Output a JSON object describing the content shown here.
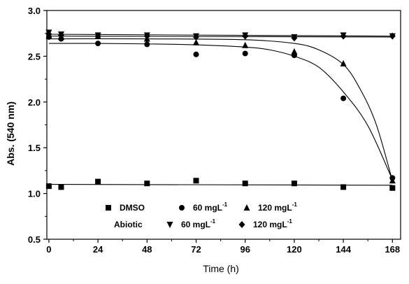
{
  "chart_data": {
    "type": "scatter",
    "xlabel": "Time (h)",
    "ylabel": "Abs. (540 nm)",
    "xlim": [
      -1,
      172
    ],
    "ylim": [
      0.5,
      3.0
    ],
    "x_ticks": [
      0,
      24,
      48,
      72,
      96,
      120,
      144,
      168
    ],
    "y_ticks": [
      0.5,
      1.0,
      1.5,
      2.0,
      2.5,
      3.0
    ],
    "y_tick_labels": [
      "0.5",
      "1.0",
      "1.5",
      "2.0",
      "2.5",
      "3.0"
    ],
    "grid": false,
    "legend": {
      "placement": "bottom-center",
      "row1_prefix": "",
      "row2_prefix": "Abiotic",
      "unit_superscript": "-1"
    },
    "series": [
      {
        "name": "DMSO",
        "legend_text": "DMSO",
        "marker": "square",
        "x": [
          0,
          6,
          24,
          48,
          72,
          96,
          120,
          144,
          168
        ],
        "y": [
          1.08,
          1.07,
          1.13,
          1.11,
          1.14,
          1.11,
          1.11,
          1.07,
          1.06
        ],
        "fit": [
          [
            0,
            1.1
          ],
          [
            168,
            1.09
          ]
        ]
      },
      {
        "name": "60 mgL-1",
        "legend_text": "60 mgL",
        "marker": "circle",
        "x": [
          0,
          6,
          24,
          48,
          72,
          96,
          120,
          144,
          168
        ],
        "y": [
          2.71,
          2.69,
          2.64,
          2.63,
          2.52,
          2.53,
          2.51,
          2.04,
          1.17
        ],
        "fit": [
          [
            0,
            2.64
          ],
          [
            24,
            2.64
          ],
          [
            48,
            2.635
          ],
          [
            72,
            2.625
          ],
          [
            96,
            2.6
          ],
          [
            108,
            2.57
          ],
          [
            120,
            2.5
          ],
          [
            132,
            2.38
          ],
          [
            144,
            2.11
          ],
          [
            156,
            1.74
          ],
          [
            168,
            1.15
          ]
        ]
      },
      {
        "name": "120 mgL-1",
        "legend_text": "120 mgL",
        "marker": "triangle",
        "x": [
          0,
          6,
          24,
          48,
          72,
          96,
          120,
          144,
          168
        ],
        "y": [
          2.72,
          2.71,
          2.72,
          2.69,
          2.65,
          2.62,
          2.55,
          2.42,
          1.14
        ],
        "fit": [
          [
            0,
            2.69
          ],
          [
            48,
            2.69
          ],
          [
            96,
            2.68
          ],
          [
            120,
            2.64
          ],
          [
            132,
            2.57
          ],
          [
            144,
            2.41
          ],
          [
            152,
            2.15
          ],
          [
            160,
            1.76
          ],
          [
            168,
            1.14
          ]
        ]
      },
      {
        "name": "Abiotic 60 mgL-1",
        "legend_text": "60 mgL",
        "marker": "triangle-down",
        "x": [
          0,
          6,
          24,
          48,
          72,
          96,
          120,
          144,
          168
        ],
        "y": [
          2.76,
          2.74,
          2.73,
          2.73,
          2.72,
          2.73,
          2.71,
          2.73,
          2.72
        ],
        "fit": [
          [
            0,
            2.74
          ],
          [
            168,
            2.72
          ]
        ]
      },
      {
        "name": "Abiotic 120 mgL-1",
        "legend_text": "120 mgL",
        "marker": "diamond",
        "x": [
          0,
          6,
          24,
          48,
          72,
          96,
          120,
          144,
          168
        ],
        "y": [
          2.74,
          2.73,
          2.72,
          2.72,
          2.71,
          2.72,
          2.7,
          2.72,
          2.72
        ],
        "fit": [
          [
            0,
            2.72
          ],
          [
            168,
            2.71
          ]
        ]
      }
    ]
  }
}
